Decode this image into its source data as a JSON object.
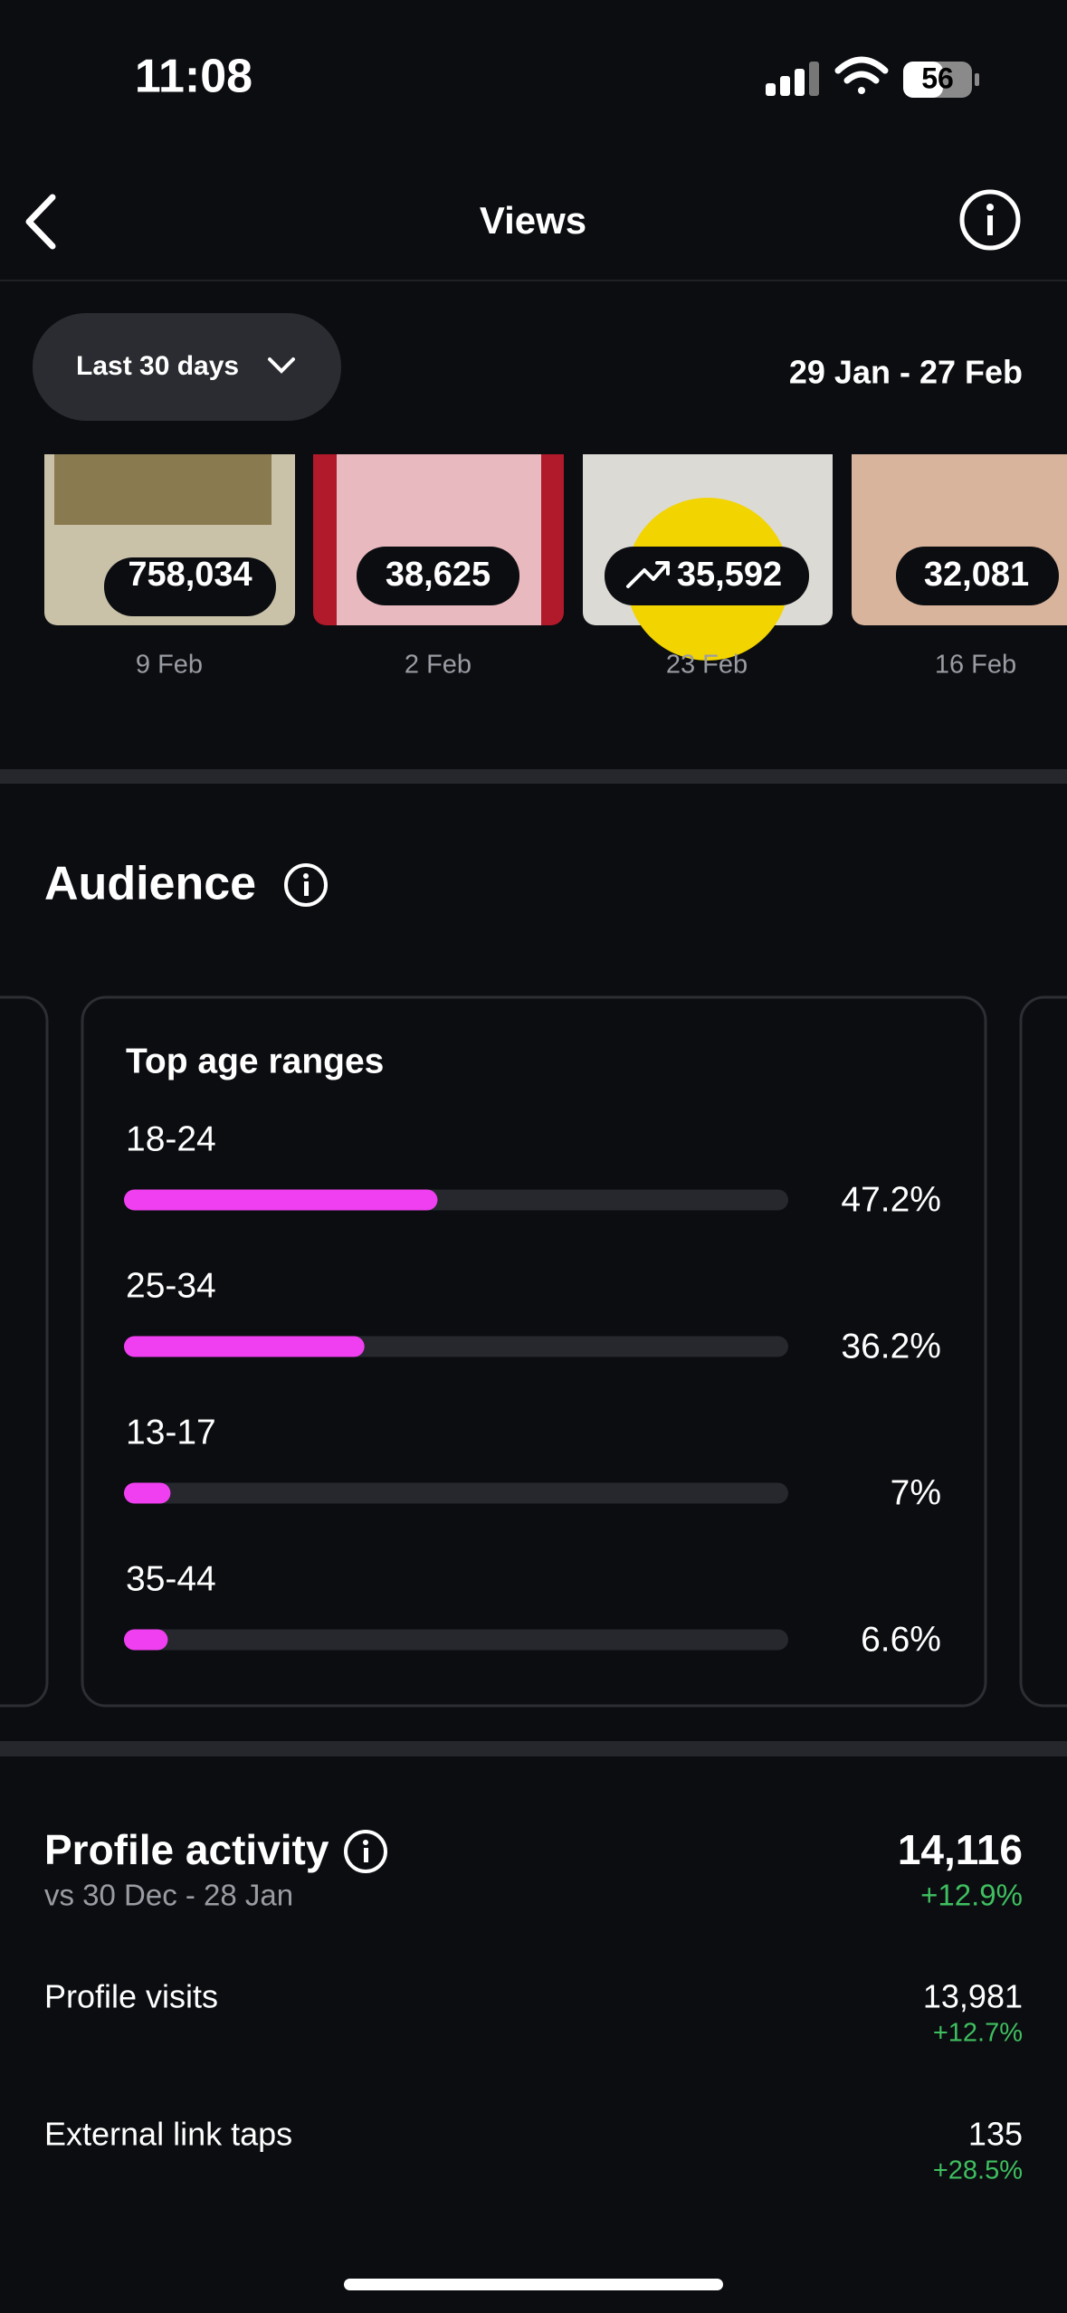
{
  "status_bar": {
    "time": "11:08",
    "battery": "56"
  },
  "header": {
    "title": "Views"
  },
  "filter": {
    "period": "Last 30 days",
    "date_range": "29 Jan - 27 Feb"
  },
  "top_content": [
    {
      "views": "758,034",
      "date": "9 Feb"
    },
    {
      "views": "38,625",
      "date": "2 Feb"
    },
    {
      "views": "35,592",
      "date": "23 Feb"
    },
    {
      "views": "32,081",
      "date": "16 Feb"
    }
  ],
  "audience": {
    "title": "Audience"
  },
  "chart_data": {
    "type": "bar",
    "orientation": "horizontal",
    "title": "Top age ranges",
    "categories": [
      "18-24",
      "25-34",
      "13-17",
      "35-44"
    ],
    "values": [
      47.2,
      36.2,
      7,
      6.6
    ],
    "value_labels": [
      "47.2%",
      "36.2%",
      "7%",
      "6.6%"
    ],
    "color": "#f03ff0",
    "track_color": "#26282d",
    "xlim": [
      0,
      100
    ]
  },
  "profile_activity": {
    "title": "Profile activity",
    "comparison": "vs 30 Dec - 28 Jan",
    "total": "14,116",
    "change": "+12.9%",
    "rows": [
      {
        "label": "Profile visits",
        "value": "13,981",
        "change": "+12.7%"
      },
      {
        "label": "External link taps",
        "value": "135",
        "change": "+28.5%"
      }
    ]
  }
}
